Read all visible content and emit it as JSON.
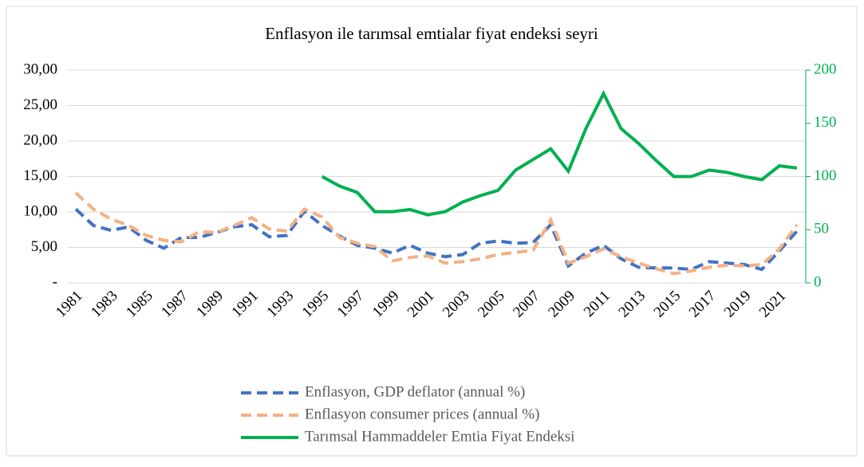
{
  "chart_data": {
    "type": "line",
    "title": "Enflasyon ile tarımsal emtialar fiyat endeksi seyri",
    "categories": [
      "1981",
      null,
      "1983",
      null,
      "1985",
      null,
      "1987",
      null,
      "1989",
      null,
      "1991",
      null,
      "1993",
      null,
      "1995",
      null,
      "1997",
      null,
      "1999",
      null,
      "2001",
      null,
      "2003",
      null,
      "2005",
      null,
      "2007",
      null,
      "2009",
      null,
      "2011",
      null,
      "2013",
      null,
      "2015",
      null,
      "2017",
      null,
      "2019",
      null,
      "2021",
      null
    ],
    "ylim": [
      0,
      30
    ],
    "yticks": [
      {
        "value": 0,
        "label": "-"
      },
      {
        "value": 5,
        "label": "5,00"
      },
      {
        "value": 10,
        "label": "10,00"
      },
      {
        "value": 15,
        "label": "15,00"
      },
      {
        "value": 20,
        "label": "20,00"
      },
      {
        "value": 25,
        "label": "25,00"
      },
      {
        "value": 30,
        "label": "30,00"
      }
    ],
    "y2lim": [
      0,
      200
    ],
    "y2ticks": [
      0,
      50,
      100,
      150,
      200
    ],
    "y2color": "#00b050",
    "grid": true,
    "legend": "bottom",
    "series": [
      {
        "name": "Enflasyon, GDP deflator (annual %)",
        "color": "#4472c4",
        "dashed": true,
        "values": [
          10.4,
          8.1,
          7.4,
          7.9,
          6.0,
          4.9,
          6.4,
          6.4,
          7.1,
          7.9,
          8.2,
          6.5,
          6.7,
          10.1,
          8.1,
          6.6,
          5.3,
          4.9,
          4.2,
          5.3,
          4.2,
          3.7,
          4.0,
          5.6,
          5.9,
          5.6,
          5.7,
          8.2,
          2.4,
          4.2,
          5.3,
          3.4,
          2.2,
          2.1,
          2.1,
          1.9,
          3.0,
          2.8,
          2.6,
          1.9,
          4.5,
          7.3
        ]
      },
      {
        "name": "Enflasyon consumer prices (annual %)",
        "color": "#f4b183",
        "dashed": true,
        "values": [
          12.7,
          10.4,
          9.0,
          8.1,
          6.7,
          6.0,
          5.8,
          7.2,
          7.1,
          8.1,
          9.2,
          7.6,
          7.3,
          10.4,
          9.3,
          6.4,
          5.6,
          5.1,
          3.1,
          3.6,
          3.8,
          2.8,
          3.0,
          3.4,
          4.0,
          4.3,
          4.6,
          8.9,
          2.8,
          3.7,
          4.8,
          3.7,
          2.8,
          2.0,
          1.3,
          1.7,
          2.2,
          2.5,
          2.4,
          2.6,
          4.8,
          8.2
        ]
      },
      {
        "name": "Tarımsal Hammaddeler Emtia Fiyat Endeksi",
        "color": "#00b050",
        "dashed": false,
        "axis": "y2",
        "values": [
          null,
          null,
          null,
          null,
          null,
          null,
          null,
          null,
          null,
          null,
          null,
          null,
          null,
          null,
          100,
          91,
          85,
          67,
          67,
          69,
          64,
          67,
          76,
          82,
          87,
          106,
          116,
          126,
          105,
          145,
          178,
          145,
          131,
          115,
          100,
          100,
          106,
          104,
          100,
          97,
          110,
          108
        ]
      }
    ]
  }
}
